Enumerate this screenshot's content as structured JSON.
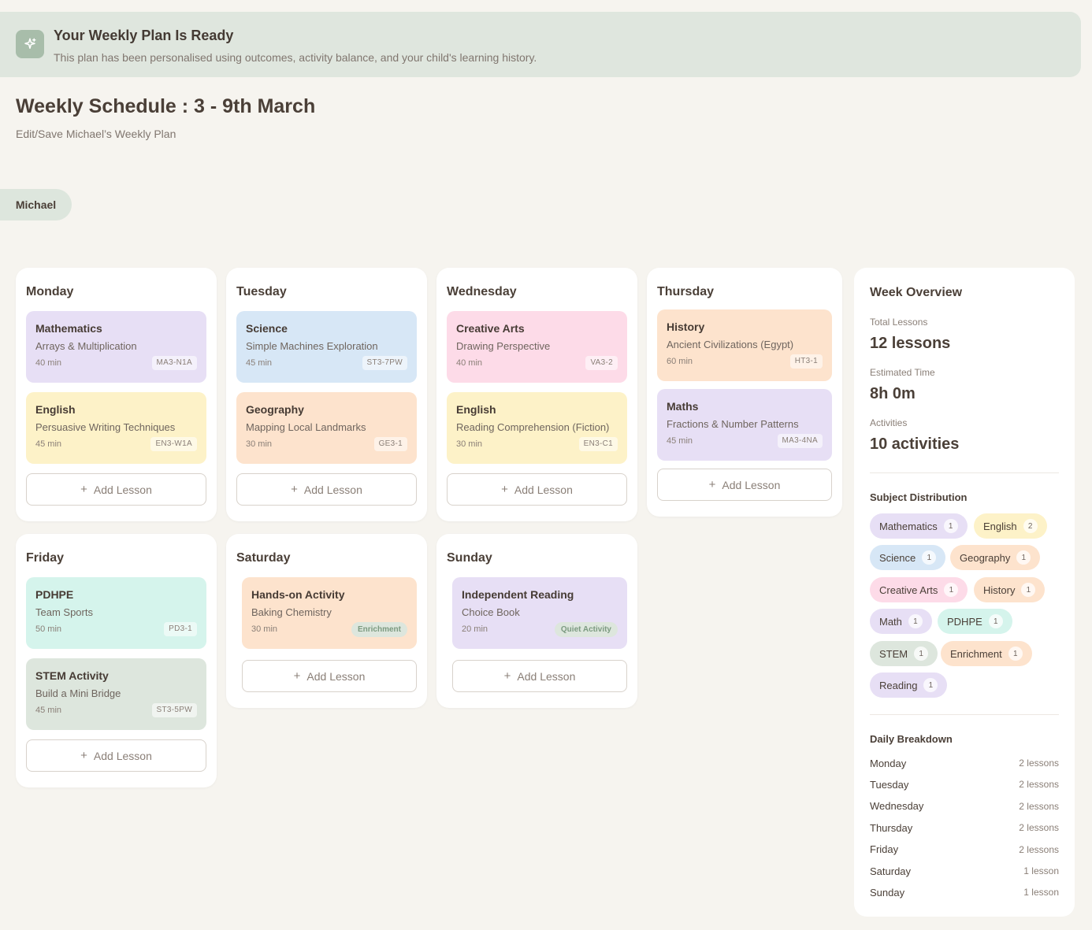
{
  "banner": {
    "icon": "sparkle-icon",
    "title": "Your Weekly Plan Is Ready",
    "subtitle": "This plan has been personalised using outcomes, activity balance, and your child's learning history."
  },
  "header": {
    "title": "Weekly Schedule : 3 - 9th March",
    "subtitle": "Edit/Save Michael’s Weekly Plan"
  },
  "child": {
    "name": "Michael"
  },
  "add_lesson_label": "Add Lesson",
  "colors": {
    "purple": "#e7dff5",
    "yellow": "#fdf2c8",
    "blue": "#d7e7f6",
    "orange": "#fde3cd",
    "pink": "#fddbe8",
    "mint": "#d5f4ec",
    "sage": "#dde6dd"
  },
  "days": [
    {
      "name": "Monday",
      "lessons": [
        {
          "subject": "Mathematics",
          "topic": "Arrays & Multiplication",
          "duration": "40 min",
          "code": "MA3-N1A",
          "color": "#e7dff5"
        },
        {
          "subject": "English",
          "topic": "Persuasive Writing Techniques",
          "duration": "45 min",
          "code": "EN3-W1A",
          "color": "#fdf2c8"
        }
      ]
    },
    {
      "name": "Tuesday",
      "lessons": [
        {
          "subject": "Science",
          "topic": "Simple Machines Exploration",
          "duration": "45 min",
          "code": "ST3-7PW",
          "color": "#d7e7f6"
        },
        {
          "subject": "Geography",
          "topic": "Mapping Local Landmarks",
          "duration": "30 min",
          "code": "GE3-1",
          "color": "#fde3cd"
        }
      ]
    },
    {
      "name": "Wednesday",
      "lessons": [
        {
          "subject": "Creative Arts",
          "topic": "Drawing Perspective",
          "duration": "40 min",
          "code": "VA3-2",
          "color": "#fddbe8"
        },
        {
          "subject": "English",
          "topic": "Reading Comprehension (Fiction)",
          "duration": "30 min",
          "code": "EN3-C1",
          "color": "#fdf2c8"
        }
      ]
    },
    {
      "name": "Thursday",
      "lessons": [
        {
          "subject": "History",
          "topic": "Ancient Civilizations (Egypt)",
          "duration": "60 min",
          "code": "HT3-1",
          "color": "#fde3cd"
        },
        {
          "subject": "Maths",
          "topic": "Fractions & Number Patterns",
          "duration": "45 min",
          "code": "MA3-4NA",
          "color": "#e7dff5"
        }
      ]
    },
    {
      "name": "Friday",
      "lessons": [
        {
          "subject": "PDHPE",
          "topic": "Team Sports",
          "duration": "50 min",
          "code": "PD3-1",
          "color": "#d5f4ec"
        },
        {
          "subject": "STEM Activity",
          "topic": "Build a Mini Bridge",
          "duration": "45 min",
          "code": "ST3-5PW",
          "color": "#dde6dd"
        }
      ]
    },
    {
      "name": "Saturday",
      "lessons": [
        {
          "subject": "Hands-on Activity",
          "topic": "Baking Chemistry",
          "duration": "30 min",
          "tag": "Enrichment",
          "tag_bg": "#dde6dd",
          "tag_color": "#7c9a80",
          "color": "#fde3cd"
        }
      ]
    },
    {
      "name": "Sunday",
      "lessons": [
        {
          "subject": "Independent Reading",
          "topic": "Choice Book",
          "duration": "20 min",
          "tag": "Quiet Activity",
          "tag_bg": "#dde6dd",
          "tag_color": "#7c9a80",
          "color": "#e7dff5"
        }
      ]
    }
  ],
  "overview": {
    "title": "Week Overview",
    "total_lessons_label": "Total Lessons",
    "total_lessons_value": "12 lessons",
    "estimated_time_label": "Estimated Time",
    "estimated_time_value": "8h 0m",
    "activities_label": "Activities",
    "activities_value": "10 activities",
    "distribution_title": "Subject Distribution",
    "distribution": [
      {
        "subject": "Mathematics",
        "count": "1",
        "color": "#e7dff5"
      },
      {
        "subject": "English",
        "count": "2",
        "color": "#fdf2c8"
      },
      {
        "subject": "Science",
        "count": "1",
        "color": "#d7e7f6"
      },
      {
        "subject": "Geography",
        "count": "1",
        "color": "#fde3cd"
      },
      {
        "subject": "Creative Arts",
        "count": "1",
        "color": "#fddbe8"
      },
      {
        "subject": "History",
        "count": "1",
        "color": "#fde3cd"
      },
      {
        "subject": "Math",
        "count": "1",
        "color": "#e7dff5"
      },
      {
        "subject": "PDHPE",
        "count": "1",
        "color": "#d5f4ec"
      },
      {
        "subject": "STEM",
        "count": "1",
        "color": "#dde6dd"
      },
      {
        "subject": "Enrichment",
        "count": "1",
        "color": "#fde3cd"
      },
      {
        "subject": "Reading",
        "count": "1",
        "color": "#e7dff5"
      }
    ],
    "breakdown_title": "Daily Breakdown",
    "breakdown": [
      {
        "day": "Monday",
        "count": "2 lessons"
      },
      {
        "day": "Tuesday",
        "count": "2 lessons"
      },
      {
        "day": "Wednesday",
        "count": "2 lessons"
      },
      {
        "day": "Thursday",
        "count": "2 lessons"
      },
      {
        "day": "Friday",
        "count": "2 lessons"
      },
      {
        "day": "Saturday",
        "count": "1 lesson"
      },
      {
        "day": "Sunday",
        "count": "1 lesson"
      }
    ]
  }
}
